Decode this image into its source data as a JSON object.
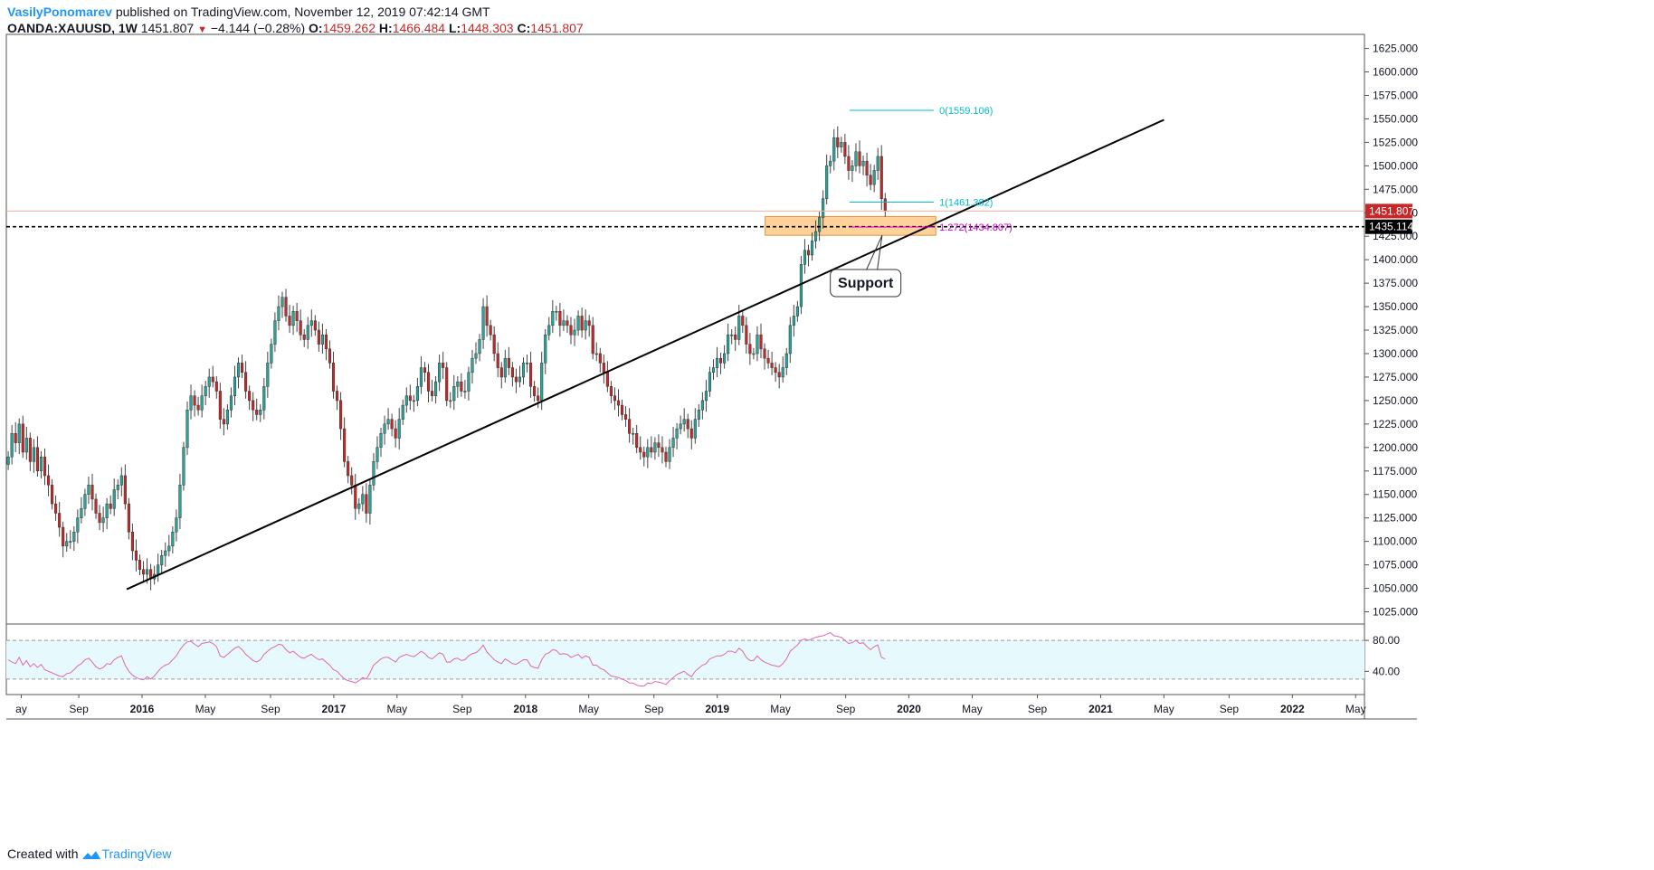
{
  "header": {
    "author": "VasilyPonomarev",
    "published": "published on TradingView.com, November 12, 2019 07:42:14 GMT",
    "symbol": "OANDA:XAUUSD, 1W",
    "last": "1451.807",
    "change": "−4.144 (−0.28%)",
    "open_label": "O:",
    "open": "1459.262",
    "high_label": "H:",
    "high": "1466.484",
    "low_label": "L:",
    "low": "1448.303",
    "close_label": "C:",
    "close": "1451.807"
  },
  "footer": {
    "created_with": "Created with",
    "brand": "TradingView"
  },
  "colors": {
    "up": "#26a69a",
    "down": "#c62828",
    "accent": "#2196f3",
    "zone": "#ffc98a",
    "rsi": "#e066b4",
    "fib": "#00bcd4",
    "fib_ext": "#cc00cc"
  },
  "chart_data": {
    "type": "candlestick",
    "symbol": "OANDA:XAUUSD",
    "interval": "1W",
    "ylim": [
      1012,
      1640
    ],
    "y_ticks": [
      "1625.000",
      "1600.000",
      "1575.000",
      "1550.000",
      "1525.000",
      "1500.000",
      "1475.000",
      "1450.000",
      "1425.000",
      "1400.000",
      "1375.000",
      "1350.000",
      "1325.000",
      "1300.000",
      "1275.000",
      "1250.000",
      "1225.000",
      "1200.000",
      "1175.000",
      "1150.000",
      "1125.000",
      "1100.000",
      "1075.000",
      "1050.000",
      "1025.000"
    ],
    "y_tick_values": [
      1625,
      1600,
      1575,
      1550,
      1525,
      1500,
      1475,
      1450,
      1425,
      1400,
      1375,
      1350,
      1325,
      1300,
      1275,
      1250,
      1225,
      1200,
      1175,
      1150,
      1125,
      1100,
      1075,
      1050,
      1025
    ],
    "x_ticks": [
      {
        "label": "ay",
        "t": 2015.37
      },
      {
        "label": "Sep",
        "t": 2015.67
      },
      {
        "label": "2016",
        "t": 2016.0
      },
      {
        "label": "May",
        "t": 2016.33
      },
      {
        "label": "Sep",
        "t": 2016.67
      },
      {
        "label": "2017",
        "t": 2017.0
      },
      {
        "label": "May",
        "t": 2017.33
      },
      {
        "label": "Sep",
        "t": 2017.67
      },
      {
        "label": "2018",
        "t": 2018.0
      },
      {
        "label": "May",
        "t": 2018.33
      },
      {
        "label": "Sep",
        "t": 2018.67
      },
      {
        "label": "2019",
        "t": 2019.0
      },
      {
        "label": "May",
        "t": 2019.33
      },
      {
        "label": "Sep",
        "t": 2019.67
      },
      {
        "label": "2020",
        "t": 2020.0
      },
      {
        "label": "May",
        "t": 2020.33
      },
      {
        "label": "Sep",
        "t": 2020.67
      },
      {
        "label": "2021",
        "t": 2021.0
      },
      {
        "label": "May",
        "t": 2021.33
      },
      {
        "label": "Sep",
        "t": 2021.67
      },
      {
        "label": "2022",
        "t": 2022.0
      },
      {
        "label": "May",
        "t": 2022.33
      }
    ],
    "closes": [
      1190,
      1215,
      1205,
      1225,
      1195,
      1210,
      1185,
      1200,
      1175,
      1190,
      1170,
      1160,
      1140,
      1130,
      1115,
      1095,
      1100,
      1100,
      1110,
      1125,
      1135,
      1150,
      1160,
      1145,
      1130,
      1120,
      1125,
      1140,
      1135,
      1155,
      1160,
      1170,
      1140,
      1110,
      1090,
      1080,
      1070,
      1065,
      1070,
      1060,
      1065,
      1075,
      1085,
      1090,
      1095,
      1110,
      1125,
      1160,
      1200,
      1240,
      1255,
      1245,
      1240,
      1255,
      1265,
      1275,
      1270,
      1260,
      1230,
      1225,
      1240,
      1255,
      1275,
      1290,
      1280,
      1260,
      1250,
      1240,
      1235,
      1240,
      1265,
      1290,
      1310,
      1335,
      1350,
      1360,
      1340,
      1330,
      1345,
      1335,
      1320,
      1315,
      1330,
      1335,
      1325,
      1310,
      1320,
      1305,
      1290,
      1260,
      1250,
      1220,
      1185,
      1170,
      1160,
      1135,
      1140,
      1150,
      1130,
      1160,
      1185,
      1200,
      1215,
      1225,
      1230,
      1220,
      1210,
      1230,
      1245,
      1255,
      1250,
      1250,
      1265,
      1285,
      1280,
      1260,
      1255,
      1270,
      1290,
      1285,
      1250,
      1250,
      1265,
      1270,
      1260,
      1260,
      1280,
      1295,
      1300,
      1315,
      1350,
      1330,
      1320,
      1300,
      1285,
      1275,
      1295,
      1285,
      1275,
      1270,
      1275,
      1290,
      1290,
      1265,
      1255,
      1250,
      1290,
      1320,
      1330,
      1345,
      1345,
      1330,
      1335,
      1330,
      1320,
      1325,
      1340,
      1325,
      1335,
      1330,
      1300,
      1300,
      1290,
      1280,
      1265,
      1255,
      1250,
      1245,
      1235,
      1230,
      1215,
      1215,
      1200,
      1195,
      1190,
      1200,
      1195,
      1205,
      1200,
      1195,
      1185,
      1200,
      1210,
      1220,
      1225,
      1230,
      1220,
      1210,
      1230,
      1240,
      1250,
      1260,
      1280,
      1285,
      1295,
      1290,
      1300,
      1320,
      1320,
      1315,
      1340,
      1330,
      1310,
      1300,
      1300,
      1320,
      1305,
      1295,
      1290,
      1285,
      1280,
      1275,
      1285,
      1300,
      1330,
      1340,
      1350,
      1395,
      1410,
      1405,
      1420,
      1430,
      1445,
      1465,
      1500,
      1505,
      1530,
      1520,
      1525,
      1510,
      1495,
      1500,
      1515,
      1500,
      1505,
      1490,
      1480,
      1495,
      1510,
      1465,
      1451.8
    ],
    "support_zone": {
      "from": 1426,
      "to": 1446,
      "label": "Support"
    },
    "trendline": {
      "start": [
        2015.92,
        1049
      ],
      "end": [
        2021.33,
        1549
      ]
    },
    "horizontal_level": 1435.114,
    "last_price": 1451.807,
    "fibonacci": [
      {
        "label": "0(1559.106)",
        "value": 1559.106
      },
      {
        "label": "1(1461.382)",
        "value": 1461.382
      },
      {
        "label": "1.272(1434.807)",
        "value": 1434.807
      }
    ],
    "price_labels": [
      "1451.807",
      "1435.114"
    ],
    "rsi": {
      "ylim": [
        10,
        100
      ],
      "upper_band": 80,
      "lower_band": 30,
      "tick_labels": [
        "80.00",
        "40.00"
      ],
      "tick_values": [
        80,
        40
      ],
      "values": [
        55,
        52,
        50,
        58,
        48,
        54,
        46,
        50,
        45,
        49,
        42,
        40,
        38,
        36,
        34,
        33,
        37,
        38,
        42,
        47,
        50,
        55,
        57,
        52,
        46,
        43,
        45,
        50,
        49,
        55,
        58,
        60,
        48,
        40,
        35,
        32,
        30,
        29,
        33,
        30,
        34,
        40,
        45,
        48,
        50,
        55,
        60,
        68,
        74,
        78,
        79,
        75,
        72,
        76,
        77,
        78,
        76,
        72,
        60,
        58,
        62,
        66,
        70,
        72,
        68,
        62,
        58,
        54,
        52,
        55,
        62,
        66,
        70,
        72,
        75,
        74,
        68,
        64,
        66,
        62,
        58,
        57,
        60,
        62,
        58,
        55,
        56,
        52,
        48,
        42,
        40,
        35,
        30,
        28,
        27,
        25,
        28,
        32,
        30,
        38,
        48,
        52,
        56,
        58,
        58,
        55,
        52,
        58,
        60,
        62,
        60,
        59,
        62,
        66,
        63,
        58,
        56,
        60,
        64,
        62,
        52,
        52,
        56,
        57,
        54,
        55,
        60,
        63,
        64,
        68,
        74,
        65,
        60,
        55,
        52,
        50,
        56,
        53,
        50,
        49,
        52,
        55,
        55,
        47,
        45,
        44,
        55,
        62,
        64,
        68,
        67,
        62,
        63,
        62,
        58,
        60,
        62,
        57,
        60,
        58,
        48,
        48,
        44,
        42,
        38,
        34,
        33,
        32,
        30,
        28,
        25,
        25,
        22,
        21,
        21,
        25,
        24,
        27,
        26,
        25,
        23,
        28,
        32,
        36,
        38,
        40,
        36,
        33,
        40,
        44,
        48,
        50,
        56,
        58,
        60,
        60,
        62,
        66,
        66,
        64,
        70,
        66,
        58,
        54,
        54,
        60,
        55,
        52,
        50,
        48,
        47,
        46,
        50,
        56,
        66,
        70,
        74,
        80,
        82,
        80,
        82,
        84,
        85,
        86,
        88,
        90,
        86,
        85,
        84,
        80,
        76,
        77,
        80,
        76,
        77,
        72,
        68,
        72,
        74,
        58,
        56
      ]
    }
  }
}
